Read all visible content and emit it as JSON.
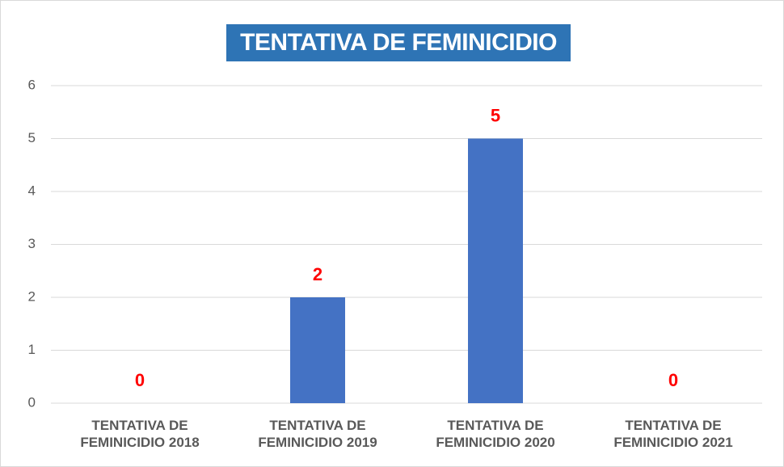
{
  "chart_data": {
    "type": "bar",
    "title": "TENTATIVA DE FEMINICIDIO",
    "categories": [
      "TENTATIVA DE FEMINICIDIO 2018",
      "TENTATIVA DE FEMINICIDIO 2019",
      "TENTATIVA DE FEMINICIDIO 2020",
      "TENTATIVA DE FEMINICIDIO 2021"
    ],
    "values": [
      0,
      2,
      5,
      0
    ],
    "color": "#4472c4",
    "value_label_color": "#ff0000",
    "ylim": [
      0,
      6
    ],
    "yticks": [
      0,
      1,
      2,
      3,
      4,
      5,
      6
    ],
    "grid": true
  }
}
